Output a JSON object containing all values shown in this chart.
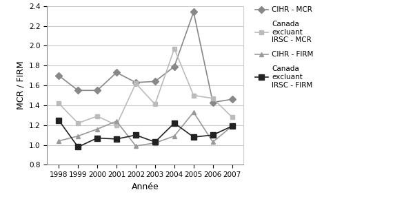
{
  "years": [
    1998,
    1999,
    2000,
    2001,
    2002,
    2003,
    2004,
    2005,
    2006,
    2007
  ],
  "cihr_mcr": [
    1.7,
    1.55,
    1.55,
    1.73,
    1.63,
    1.64,
    1.79,
    2.34,
    1.43,
    1.46
  ],
  "canada_mcr": [
    1.42,
    1.22,
    1.29,
    1.2,
    1.62,
    1.41,
    1.97,
    1.5,
    1.47,
    1.28
  ],
  "cihr_firm": [
    1.04,
    1.09,
    1.16,
    1.24,
    0.99,
    1.02,
    1.09,
    1.33,
    1.03,
    1.19
  ],
  "canada_firm": [
    1.25,
    0.98,
    1.07,
    1.06,
    1.1,
    1.03,
    1.22,
    1.08,
    1.1,
    1.19
  ],
  "cihr_mcr_color": "#888888",
  "canada_mcr_color": "#bbbbbb",
  "cihr_firm_color": "#999999",
  "canada_firm_color": "#222222",
  "ylabel": "MCR / FIRM",
  "xlabel": "Année",
  "ylim": [
    0.8,
    2.4
  ],
  "yticks": [
    0.8,
    1.0,
    1.2,
    1.4,
    1.6,
    1.8,
    2.0,
    2.2,
    2.4
  ],
  "legend_cihr_mcr": "CIHR - MCR",
  "legend_canada_mcr": "Canada\nexcluant\nIRSC - MCR",
  "legend_cihr_firm": "CIHR - FIRM",
  "legend_canada_firm": "Canada\nexcluant\nIRSC - FIRM",
  "fig_width": 5.7,
  "fig_height": 2.92,
  "dpi": 100
}
